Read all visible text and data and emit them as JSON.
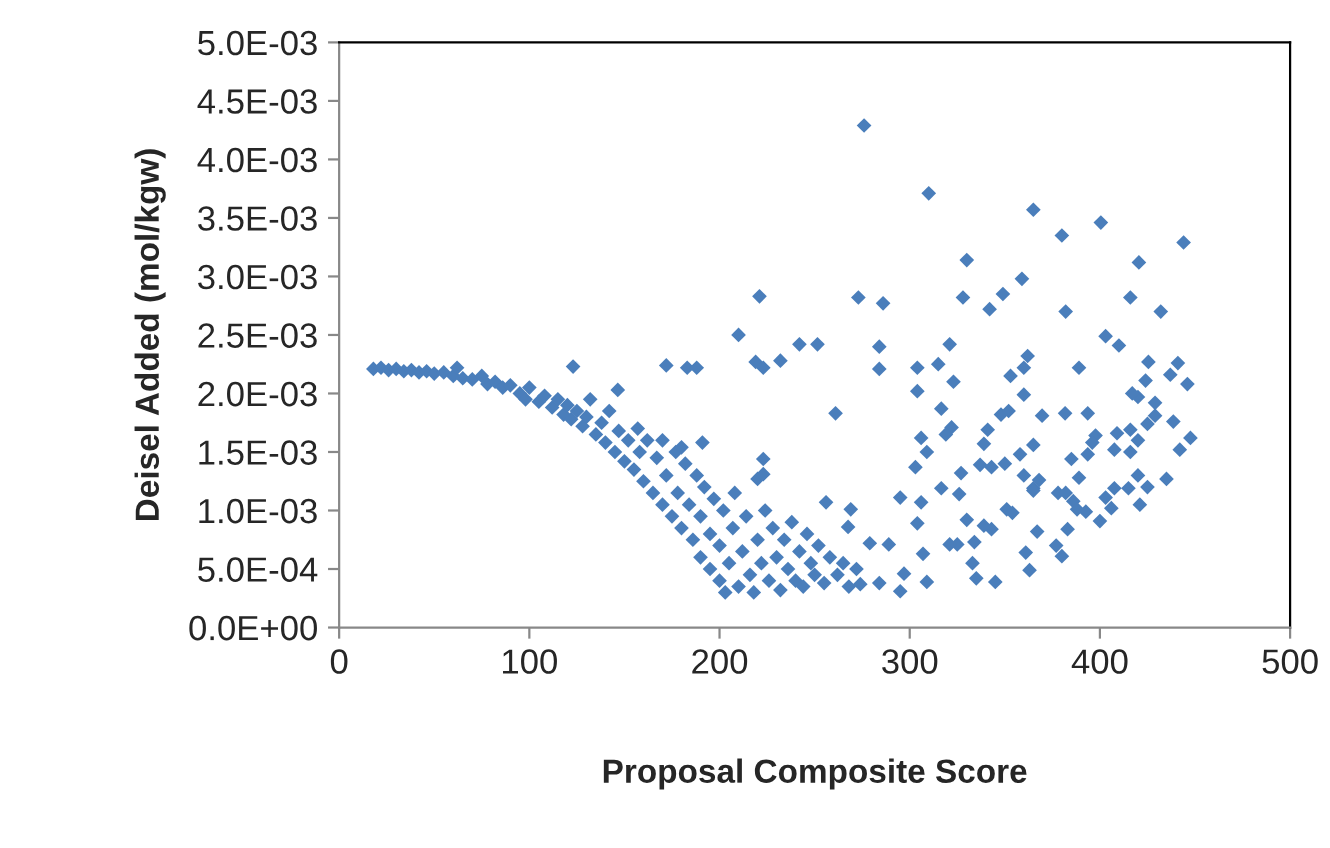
{
  "chart_data": {
    "type": "scatter",
    "xlabel": "Proposal Composite Score",
    "ylabel": "Deisel Added (mol/kgw)",
    "xlim": [
      0,
      500
    ],
    "xticks": [
      0,
      100,
      200,
      300,
      400,
      500
    ],
    "ylim": [
      0,
      0.005
    ],
    "yticks": [
      {
        "value": 0,
        "label": "0.0E+00"
      },
      {
        "value": 0.0005,
        "label": "5.0E-04"
      },
      {
        "value": 0.001,
        "label": "1.0E-03"
      },
      {
        "value": 0.0015,
        "label": "1.5E-03"
      },
      {
        "value": 0.002,
        "label": "2.0E-03"
      },
      {
        "value": 0.0025,
        "label": "2.5E-03"
      },
      {
        "value": 0.003,
        "label": "3.0E-03"
      },
      {
        "value": 0.0035,
        "label": "3.5E-03"
      },
      {
        "value": 0.004,
        "label": "4.0E-03"
      },
      {
        "value": 0.0045,
        "label": "4.5E-03"
      },
      {
        "value": 0.005,
        "label": "5.0E-03"
      }
    ],
    "grid": false,
    "legend": false,
    "marker": "diamond",
    "series": [
      {
        "color": "#4a7ebb",
        "x": [
          18,
          22,
          26,
          30,
          34,
          38,
          42,
          46,
          50,
          55,
          60,
          62,
          65,
          70,
          75,
          78,
          82,
          86,
          90,
          95,
          98,
          100,
          105,
          108,
          112,
          115,
          118,
          120,
          122,
          125,
          128,
          130,
          132,
          135,
          138,
          140,
          142,
          145,
          147,
          150,
          152,
          155,
          157,
          158,
          160,
          162,
          165,
          167,
          170,
          170,
          172,
          175,
          177,
          178,
          180,
          182,
          184,
          186,
          188,
          190,
          190,
          192,
          195,
          195,
          197,
          200,
          200,
          202,
          203,
          205,
          207,
          208,
          210,
          212,
          214,
          216,
          218,
          220,
          222,
          224,
          226,
          228,
          230,
          232,
          234,
          236,
          238,
          240,
          242,
          244,
          246,
          248,
          250,
          252,
          255,
          258,
          262,
          265,
          268,
          272,
          123,
          146.5,
          172,
          183,
          188,
          210,
          221,
          219,
          223,
          232,
          242,
          251.5,
          191,
          180,
          223,
          220,
          223,
          276,
          310,
          365,
          400.5,
          380,
          444,
          330,
          420.5,
          359,
          273,
          286,
          328,
          349,
          342,
          382,
          416,
          432,
          403,
          410,
          284,
          284,
          321,
          315,
          304,
          304,
          323,
          362,
          360,
          389,
          425.5,
          441,
          437,
          446,
          261,
          316.6,
          322,
          319,
          306,
          309,
          303,
          295,
          304,
          306,
          316.6,
          330,
          327,
          326,
          341,
          339,
          348,
          352,
          353,
          360,
          369.6,
          381.7,
          393.6,
          343,
          350,
          358,
          365,
          360,
          365,
          337,
          351,
          354,
          343,
          339,
          361,
          363,
          345,
          335,
          333,
          334,
          325,
          321,
          309,
          307,
          295,
          297,
          289,
          279,
          284,
          274,
          267.6,
          256,
          269,
          397.7,
          396,
          409,
          407.6,
          393.6,
          385,
          389,
          378,
          382,
          386,
          388,
          392.6,
          383,
          380,
          377,
          367,
          365,
          368,
          403,
          406,
          407.6,
          400,
          415,
          420,
          425,
          435,
          421,
          416,
          420,
          416,
          425,
          429,
          429,
          420,
          417,
          424,
          438.6,
          442,
          447.6
        ],
        "values": [
          0.00221,
          0.00222,
          0.0022,
          0.00221,
          0.00219,
          0.0022,
          0.00218,
          0.00219,
          0.00217,
          0.00218,
          0.00215,
          0.00222,
          0.00213,
          0.00212,
          0.00215,
          0.00208,
          0.0021,
          0.00205,
          0.00207,
          0.002,
          0.00195,
          0.00205,
          0.00193,
          0.00198,
          0.00188,
          0.00195,
          0.00182,
          0.0019,
          0.00178,
          0.00185,
          0.00172,
          0.0018,
          0.00195,
          0.00165,
          0.00175,
          0.00158,
          0.00185,
          0.0015,
          0.00168,
          0.00142,
          0.0016,
          0.00135,
          0.0017,
          0.0015,
          0.00125,
          0.0016,
          0.00115,
          0.00145,
          0.00105,
          0.0016,
          0.0013,
          0.00095,
          0.0015,
          0.00115,
          0.00085,
          0.0014,
          0.00105,
          0.00075,
          0.0013,
          0.0006,
          0.00095,
          0.0012,
          0.0005,
          0.0008,
          0.0011,
          0.0004,
          0.0007,
          0.001,
          0.0003,
          0.00055,
          0.00085,
          0.00115,
          0.00035,
          0.00065,
          0.00095,
          0.00045,
          0.0003,
          0.00075,
          0.00055,
          0.001,
          0.0004,
          0.00085,
          0.0006,
          0.00032,
          0.00075,
          0.0005,
          0.0009,
          0.0004,
          0.00065,
          0.00035,
          0.0008,
          0.00055,
          0.00045,
          0.0007,
          0.00038,
          0.0006,
          0.00045,
          0.00055,
          0.00035,
          0.0005,
          0.00223,
          0.00203,
          0.00224,
          0.00222,
          0.00222,
          0.0025,
          0.00283,
          0.00227,
          0.00222,
          0.00228,
          0.00242,
          0.00242,
          0.00158,
          0.00154,
          0.00144,
          0.00127,
          0.00131,
          0.00429,
          0.00371,
          0.00357,
          0.00346,
          0.00335,
          0.00329,
          0.00314,
          0.00312,
          0.00298,
          0.00282,
          0.00277,
          0.00282,
          0.00285,
          0.00272,
          0.0027,
          0.00282,
          0.0027,
          0.00249,
          0.00241,
          0.0024,
          0.00221,
          0.00242,
          0.00225,
          0.00222,
          0.00202,
          0.0021,
          0.00232,
          0.00222,
          0.00222,
          0.00227,
          0.00226,
          0.00216,
          0.00208,
          0.00183,
          0.00187,
          0.00171,
          0.00165,
          0.00162,
          0.0015,
          0.00137,
          0.00111,
          0.00089,
          0.00107,
          0.00119,
          0.00092,
          0.00132,
          0.00114,
          0.00169,
          0.00157,
          0.00182,
          0.00185,
          0.00215,
          0.00199,
          0.00181,
          0.00183,
          0.00183,
          0.00137,
          0.0014,
          0.00148,
          0.00156,
          0.0013,
          0.00119,
          0.00139,
          0.00101,
          0.00098,
          0.00084,
          0.00087,
          0.00064,
          0.00049,
          0.00039,
          0.00042,
          0.00055,
          0.00073,
          0.00071,
          0.00071,
          0.00039,
          0.00063,
          0.00031,
          0.00046,
          0.00071,
          0.00072,
          0.00038,
          0.00037,
          0.00086,
          0.00107,
          0.00101,
          0.00164,
          0.00158,
          0.00166,
          0.00152,
          0.00148,
          0.00144,
          0.00128,
          0.00115,
          0.00115,
          0.00108,
          0.00101,
          0.00099,
          0.00084,
          0.00061,
          0.0007,
          0.00082,
          0.00117,
          0.00126,
          0.00111,
          0.00102,
          0.00119,
          0.00091,
          0.00119,
          0.0013,
          0.0012,
          0.00127,
          0.00105,
          0.0015,
          0.0016,
          0.00169,
          0.00174,
          0.00181,
          0.00192,
          0.00197,
          0.002,
          0.00211,
          0.00176,
          0.00152,
          0.00162
        ]
      }
    ]
  }
}
